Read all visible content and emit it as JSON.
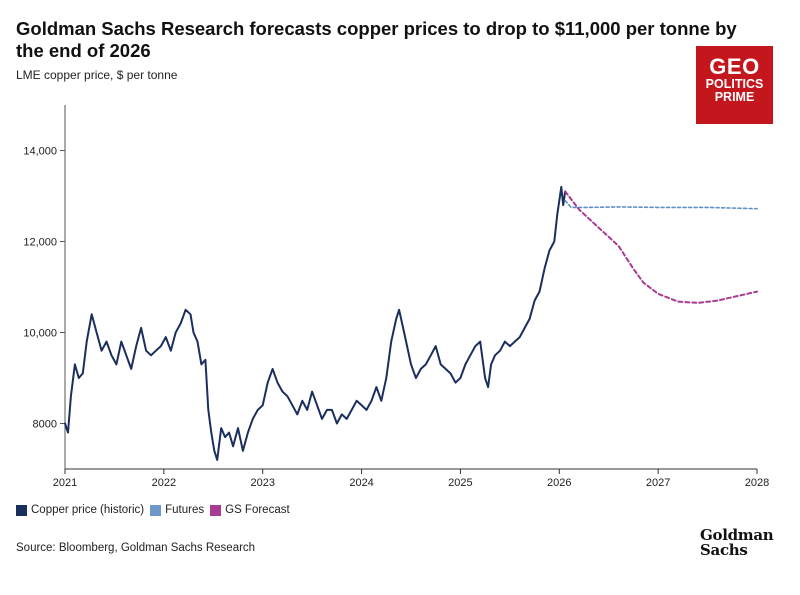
{
  "header": {
    "title": "Goldman Sachs Research forecasts copper prices to drop to $11,000 per tonne by the end of 2026",
    "subtitle": "LME copper price, $ per tonne"
  },
  "logo": {
    "line1": "GEO",
    "line2": "POLITICS",
    "line3": "PRIME",
    "color": "#c4171d"
  },
  "footer": {
    "source": "Source: Bloomberg, Goldman Sachs Research",
    "brand_line1": "Goldman",
    "brand_line2": "Sachs"
  },
  "chart_data": {
    "type": "line",
    "title": "Goldman Sachs Research forecasts copper prices to drop to $11,000 per tonne by the end of 2026",
    "ylabel": "LME copper price, $ per tonne",
    "xlabel": "",
    "xlim": [
      2021,
      2028
    ],
    "ylim": [
      7000,
      15000
    ],
    "x_ticks": [
      "2021",
      "2022",
      "2023",
      "2024",
      "2025",
      "2026",
      "2027",
      "2028"
    ],
    "y_ticks": [
      "8000",
      "10,000",
      "12,000",
      "14,000"
    ],
    "y_tick_values": [
      8000,
      10000,
      12000,
      14000
    ],
    "legend_position": "bottom-left",
    "series": [
      {
        "name": "Copper price (historic)",
        "color": "#1b2f5e",
        "style": "solid",
        "x": [
          2021.0,
          2021.03,
          2021.06,
          2021.1,
          2021.14,
          2021.18,
          2021.22,
          2021.27,
          2021.32,
          2021.37,
          2021.42,
          2021.47,
          2021.52,
          2021.57,
          2021.62,
          2021.67,
          2021.72,
          2021.77,
          2021.82,
          2021.87,
          2021.92,
          2021.97,
          2022.02,
          2022.07,
          2022.12,
          2022.17,
          2022.22,
          2022.27,
          2022.3,
          2022.34,
          2022.38,
          2022.42,
          2022.45,
          2022.48,
          2022.51,
          2022.54,
          2022.58,
          2022.62,
          2022.66,
          2022.7,
          2022.75,
          2022.8,
          2022.85,
          2022.9,
          2022.95,
          2023.0,
          2023.05,
          2023.1,
          2023.15,
          2023.2,
          2023.25,
          2023.3,
          2023.35,
          2023.4,
          2023.45,
          2023.5,
          2023.55,
          2023.6,
          2023.65,
          2023.7,
          2023.75,
          2023.8,
          2023.85,
          2023.9,
          2023.95,
          2024.0,
          2024.05,
          2024.1,
          2024.15,
          2024.2,
          2024.25,
          2024.3,
          2024.35,
          2024.38,
          2024.41,
          2024.45,
          2024.5,
          2024.55,
          2024.6,
          2024.65,
          2024.7,
          2024.75,
          2024.8,
          2024.85,
          2024.9,
          2024.95,
          2025.0,
          2025.05,
          2025.1,
          2025.15,
          2025.2,
          2025.25,
          2025.28,
          2025.31,
          2025.35,
          2025.4,
          2025.45,
          2025.5,
          2025.55,
          2025.6,
          2025.65,
          2025.7,
          2025.75,
          2025.8,
          2025.85,
          2025.9,
          2025.95,
          2025.98,
          2026.0,
          2026.02,
          2026.04,
          2026.06
        ],
        "y": [
          8000,
          7800,
          8600,
          9300,
          9000,
          9100,
          9800,
          10400,
          10000,
          9600,
          9800,
          9500,
          9300,
          9800,
          9500,
          9200,
          9700,
          10100,
          9600,
          9500,
          9600,
          9700,
          9900,
          9600,
          10000,
          10200,
          10500,
          10400,
          10000,
          9800,
          9300,
          9400,
          8300,
          7800,
          7400,
          7200,
          7900,
          7700,
          7800,
          7500,
          7900,
          7400,
          7800,
          8100,
          8300,
          8400,
          8900,
          9200,
          8900,
          8700,
          8600,
          8400,
          8200,
          8500,
          8300,
          8700,
          8400,
          8100,
          8300,
          8300,
          8000,
          8200,
          8100,
          8300,
          8500,
          8400,
          8300,
          8500,
          8800,
          8500,
          9000,
          9800,
          10300,
          10500,
          10200,
          9800,
          9300,
          9000,
          9200,
          9300,
          9500,
          9700,
          9300,
          9200,
          9100,
          8900,
          9000,
          9300,
          9500,
          9700,
          9800,
          9000,
          8800,
          9300,
          9500,
          9600,
          9800,
          9700,
          9800,
          9900,
          10100,
          10300,
          10700,
          10900,
          11400,
          11800,
          12000,
          12600,
          12900,
          13200,
          12800,
          13100
        ]
      },
      {
        "name": "Futures",
        "color": "#5f8fc7",
        "style": "dashed",
        "x": [
          2026.06,
          2026.12,
          2026.3,
          2026.6,
          2027.0,
          2027.5,
          2028.0
        ],
        "y": [
          12900,
          12750,
          12750,
          12760,
          12750,
          12750,
          12720
        ]
      },
      {
        "name": "GS Forecast",
        "color": "#a93b93",
        "style": "dashed",
        "x": [
          2026.06,
          2026.2,
          2026.4,
          2026.6,
          2026.75,
          2026.85,
          2027.0,
          2027.2,
          2027.4,
          2027.6,
          2027.8,
          2028.0
        ],
        "y": [
          13100,
          12700,
          12300,
          11900,
          11400,
          11100,
          10850,
          10680,
          10650,
          10700,
          10800,
          10900
        ]
      }
    ]
  }
}
